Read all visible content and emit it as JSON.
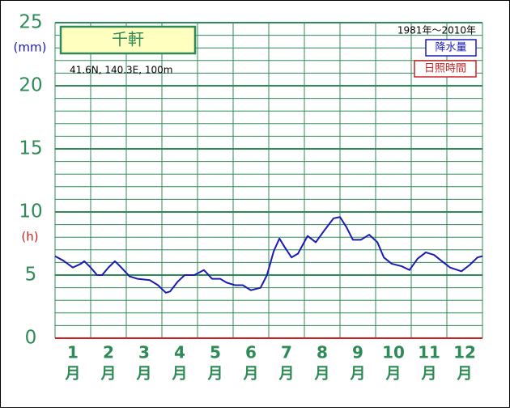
{
  "chart_data": {
    "type": "line",
    "title": "千軒",
    "location": "41.6N,  140.3E,  100m",
    "period": "1981年～2010年",
    "y_unit_left": "(mm)",
    "y_unit_right": "(h)",
    "categories": [
      "1",
      "2",
      "3",
      "4",
      "5",
      "6",
      "7",
      "8",
      "9",
      "10",
      "11",
      "12"
    ],
    "category_unit": "月",
    "xlim": [
      0,
      12
    ],
    "ylim": [
      0,
      25
    ],
    "yticks": [
      0,
      5,
      10,
      15,
      20,
      25
    ],
    "minor_grid_step": 1,
    "grid": true,
    "series": [
      {
        "name": "降水量",
        "color": "#1a1ab4",
        "x": [
          0,
          0.23,
          0.5,
          0.73,
          0.82,
          1.0,
          1.18,
          1.32,
          1.5,
          1.68,
          1.86,
          2.09,
          2.32,
          2.66,
          2.89,
          3.11,
          3.23,
          3.45,
          3.64,
          3.91,
          4.18,
          4.41,
          4.64,
          4.82,
          5.05,
          5.27,
          5.5,
          5.77,
          5.95,
          6.14,
          6.3,
          6.45,
          6.64,
          6.82,
          7.09,
          7.32,
          7.55,
          7.82,
          8.0,
          8.18,
          8.36,
          8.59,
          8.82,
          9.05,
          9.23,
          9.45,
          9.73,
          9.95,
          10.18,
          10.41,
          10.64,
          10.86,
          11.09,
          11.41,
          11.64,
          11.86,
          12
        ],
        "values": [
          6.5,
          6.15,
          5.6,
          5.9,
          6.1,
          5.6,
          5.0,
          5.0,
          5.6,
          6.1,
          5.6,
          4.9,
          4.7,
          4.6,
          4.2,
          3.6,
          3.7,
          4.5,
          5.0,
          5.0,
          5.4,
          4.7,
          4.7,
          4.4,
          4.2,
          4.2,
          3.8,
          4.0,
          5.0,
          6.9,
          7.9,
          7.2,
          6.4,
          6.7,
          8.1,
          7.6,
          8.5,
          9.5,
          9.6,
          8.8,
          7.8,
          7.8,
          8.2,
          7.6,
          6.4,
          5.9,
          5.7,
          5.4,
          6.3,
          6.8,
          6.6,
          6.1,
          5.6,
          5.3,
          5.8,
          6.4,
          6.5
        ]
      },
      {
        "name": "日照時間",
        "color": "#cc2222",
        "x": [
          0,
          12
        ],
        "values": [
          0,
          0
        ]
      }
    ]
  }
}
